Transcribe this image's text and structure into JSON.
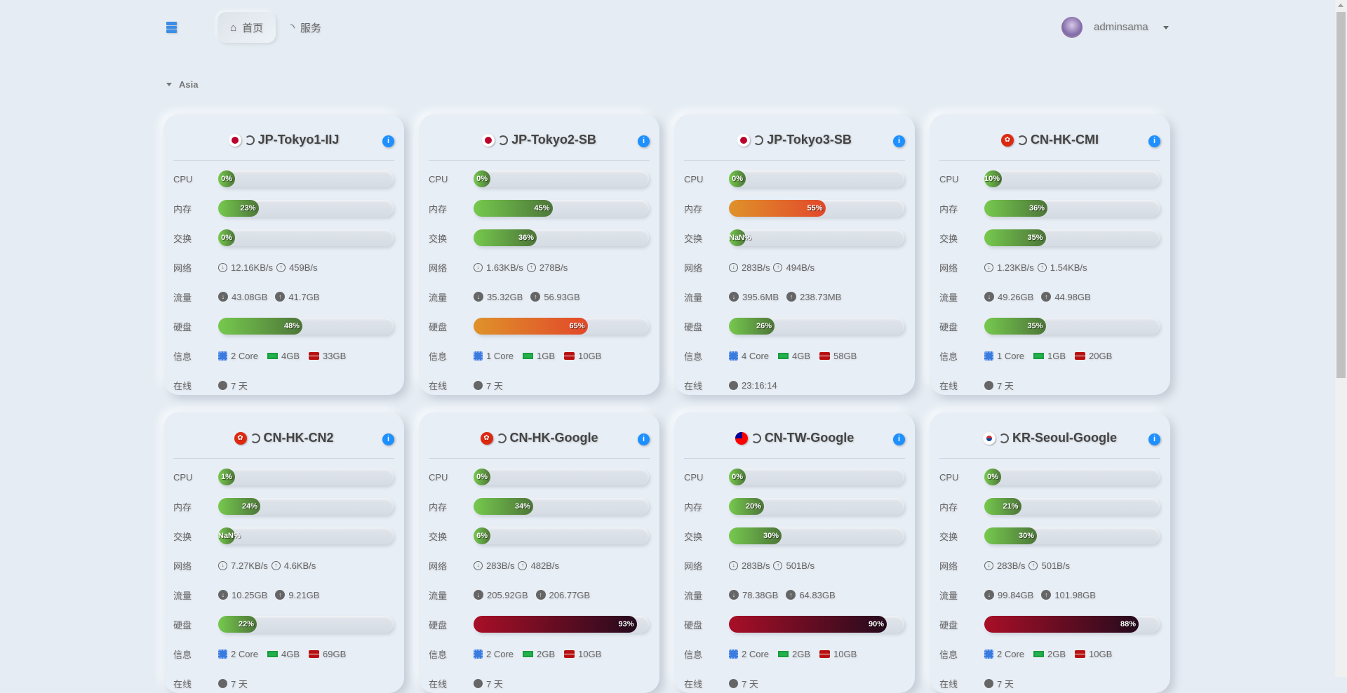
{
  "nav": {
    "home_label": "首页",
    "services_label": "服务",
    "username": "adminsama"
  },
  "group": {
    "name": "Asia"
  },
  "labels": {
    "cpu": "CPU",
    "mem": "内存",
    "swap": "交换",
    "net": "网络",
    "traffic": "流量",
    "disk": "硬盘",
    "info": "信息",
    "uptime": "在线"
  },
  "colors": {
    "green": "#76c94e",
    "orange": "#e2482a",
    "red": "#a80f27",
    "accent": "#1e90ff"
  },
  "servers": [
    {
      "name": "JP-Tokyo1-IIJ",
      "flag": "jp",
      "cpu": "0%",
      "mem": "23%",
      "swap": "0%",
      "net_down": "12.16KB/s",
      "net_up": "459B/s",
      "traffic_down": "43.08GB",
      "traffic_up": "41.7GB",
      "disk": "48%",
      "cores": "2 Core",
      "ram": "4GB",
      "storage": "33GB",
      "uptime": "7 天"
    },
    {
      "name": "JP-Tokyo2-SB",
      "flag": "jp",
      "cpu": "0%",
      "mem": "45%",
      "swap": "36%",
      "net_down": "1.63KB/s",
      "net_up": "278B/s",
      "traffic_down": "35.32GB",
      "traffic_up": "56.93GB",
      "disk": "65%",
      "cores": "1 Core",
      "ram": "1GB",
      "storage": "10GB",
      "uptime": "7 天"
    },
    {
      "name": "JP-Tokyo3-SB",
      "flag": "jp",
      "cpu": "0%",
      "mem": "55%",
      "swap": "NaN%",
      "net_down": "283B/s",
      "net_up": "494B/s",
      "traffic_down": "395.6MB",
      "traffic_up": "238.73MB",
      "disk": "26%",
      "cores": "4 Core",
      "ram": "4GB",
      "storage": "58GB",
      "uptime": "23:16:14"
    },
    {
      "name": "CN-HK-CMI",
      "flag": "hk",
      "cpu": "10%",
      "mem": "36%",
      "swap": "35%",
      "net_down": "1.23KB/s",
      "net_up": "1.54KB/s",
      "traffic_down": "49.26GB",
      "traffic_up": "44.98GB",
      "disk": "35%",
      "cores": "1 Core",
      "ram": "1GB",
      "storage": "20GB",
      "uptime": "7 天"
    },
    {
      "name": "CN-HK-CN2",
      "flag": "hk",
      "cpu": "1%",
      "mem": "24%",
      "swap": "NaN%",
      "net_down": "7.27KB/s",
      "net_up": "4.6KB/s",
      "traffic_down": "10.25GB",
      "traffic_up": "9.21GB",
      "disk": "22%",
      "cores": "2 Core",
      "ram": "4GB",
      "storage": "69GB",
      "uptime": "7 天"
    },
    {
      "name": "CN-HK-Google",
      "flag": "hk",
      "cpu": "0%",
      "mem": "34%",
      "swap": "6%",
      "net_down": "283B/s",
      "net_up": "482B/s",
      "traffic_down": "205.92GB",
      "traffic_up": "206.77GB",
      "disk": "93%",
      "cores": "2 Core",
      "ram": "2GB",
      "storage": "10GB",
      "uptime": "7 天"
    },
    {
      "name": "CN-TW-Google",
      "flag": "tw",
      "cpu": "0%",
      "mem": "20%",
      "swap": "30%",
      "net_down": "283B/s",
      "net_up": "501B/s",
      "traffic_down": "78.38GB",
      "traffic_up": "64.83GB",
      "disk": "90%",
      "cores": "2 Core",
      "ram": "2GB",
      "storage": "10GB",
      "uptime": "7 天"
    },
    {
      "name": "KR-Seoul-Google",
      "flag": "kr",
      "cpu": "0%",
      "mem": "21%",
      "swap": "30%",
      "net_down": "283B/s",
      "net_up": "501B/s",
      "traffic_down": "99.84GB",
      "traffic_up": "101.98GB",
      "disk": "88%",
      "cores": "2 Core",
      "ram": "2GB",
      "storage": "10GB",
      "uptime": "7 天"
    }
  ]
}
